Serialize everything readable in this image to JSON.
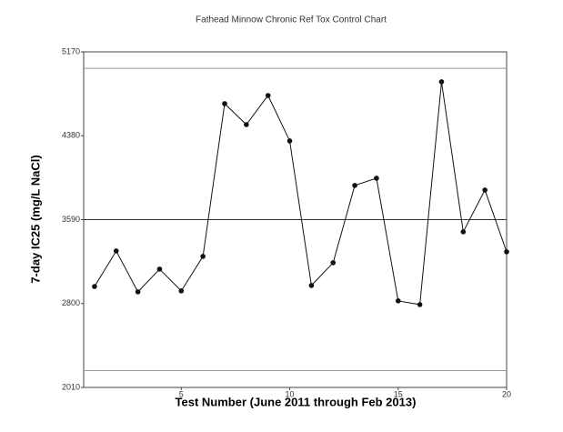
{
  "chart_data": {
    "type": "line",
    "title": "Fathead Minnow Chronic Ref Tox Control Chart",
    "x_label": "Test Number (June 2011 through Feb 2013)",
    "y_label": "7-day IC25 (mg/L NaCl)",
    "x": [
      1,
      2,
      3,
      4,
      5,
      6,
      7,
      8,
      9,
      10,
      11,
      12,
      13,
      14,
      15,
      16,
      17,
      18,
      19,
      20
    ],
    "series": [
      {
        "name": "IC25",
        "color": "#111111",
        "values": [
          2960,
          3295,
          2910,
          3124,
          2919,
          3244,
          4682,
          4485,
          4759,
          4331,
          2970,
          3184,
          3912,
          3980,
          2825,
          2790,
          4888,
          3475,
          3869,
          3287
        ]
      }
    ],
    "xlim": [
      0.5,
      20
    ],
    "xticks": [
      5,
      10,
      15,
      20
    ],
    "ylim": [
      2010,
      5170
    ],
    "yticks": [
      2010,
      2800,
      3590,
      4380,
      5170
    ],
    "reference_lines": [
      5015,
      3590,
      2168
    ]
  }
}
